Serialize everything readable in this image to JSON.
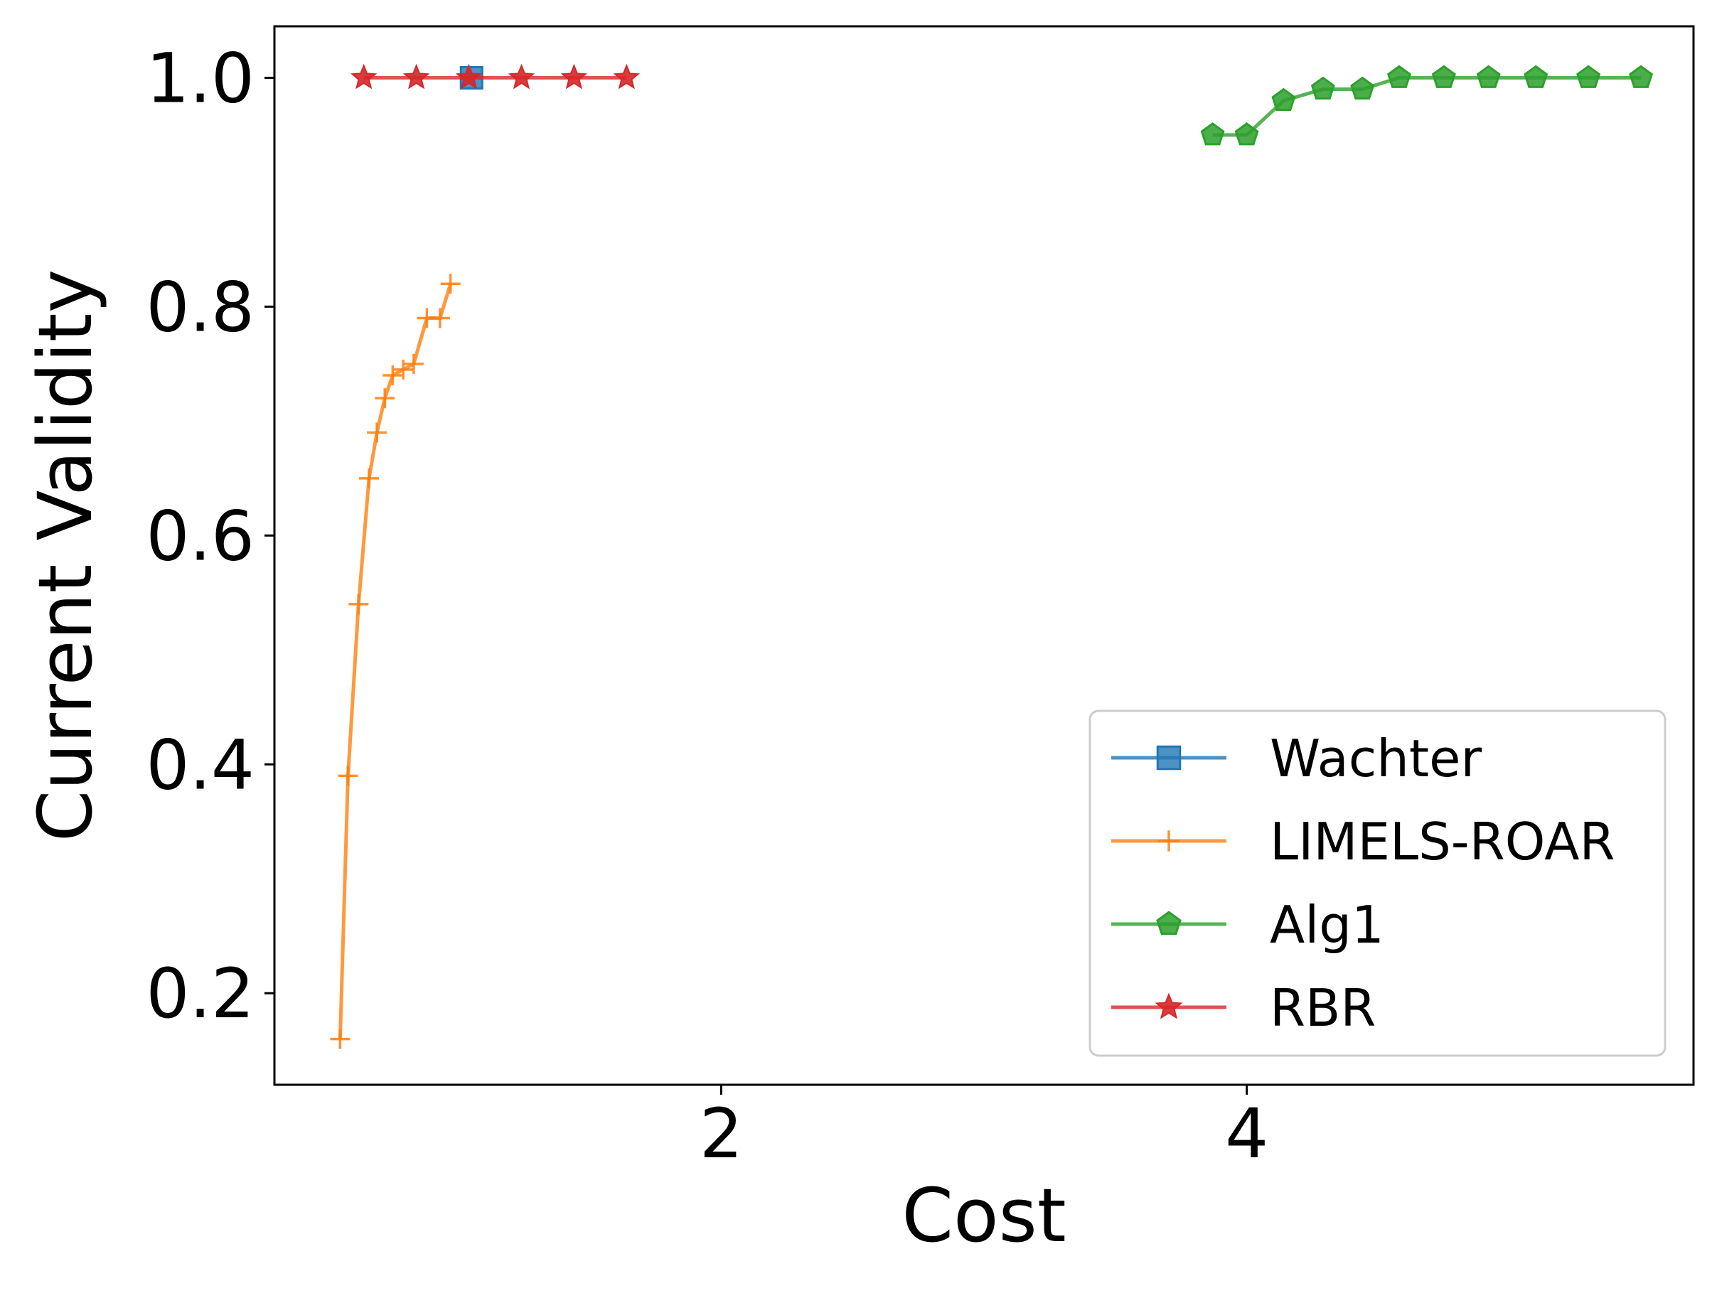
{
  "chart_data": {
    "type": "line",
    "title": "",
    "xlabel": "Cost",
    "ylabel": "Current Validity",
    "xlim": [
      0.3,
      5.7
    ],
    "ylim": [
      0.12,
      1.045
    ],
    "xticks": [
      2,
      4
    ],
    "yticks": [
      0.2,
      0.4,
      0.6,
      0.8,
      1.0
    ],
    "xtick_labels": [
      "2",
      "4"
    ],
    "ytick_labels": [
      "0.2",
      "0.4",
      "0.6",
      "0.8",
      "1.0"
    ],
    "grid": false,
    "legend_position": "lower-right",
    "series": [
      {
        "name": "Wachter",
        "color": "#1f77b4",
        "marker": "square",
        "x": [
          1.05
        ],
        "y": [
          1.0
        ]
      },
      {
        "name": "LIMELS-ROAR",
        "color": "#ff7f0e",
        "marker": "plus",
        "x": [
          0.55,
          0.58,
          0.62,
          0.66,
          0.69,
          0.72,
          0.75,
          0.79,
          0.83,
          0.88,
          0.93,
          0.97
        ],
        "y": [
          0.16,
          0.39,
          0.54,
          0.65,
          0.69,
          0.72,
          0.74,
          0.745,
          0.75,
          0.79,
          0.79,
          0.82
        ]
      },
      {
        "name": "Alg1",
        "color": "#2ca02c",
        "marker": "pentagon",
        "x": [
          3.87,
          4.0,
          4.14,
          4.29,
          4.44,
          4.58,
          4.75,
          4.92,
          5.1,
          5.3,
          5.5
        ],
        "y": [
          0.95,
          0.95,
          0.98,
          0.99,
          0.99,
          1.0,
          1.0,
          1.0,
          1.0,
          1.0,
          1.0
        ]
      },
      {
        "name": "RBR",
        "color": "#d62728",
        "marker": "star",
        "x": [
          0.64,
          0.84,
          1.04,
          1.24,
          1.44,
          1.64
        ],
        "y": [
          1.0,
          1.0,
          1.0,
          1.0,
          1.0,
          1.0
        ]
      }
    ]
  }
}
